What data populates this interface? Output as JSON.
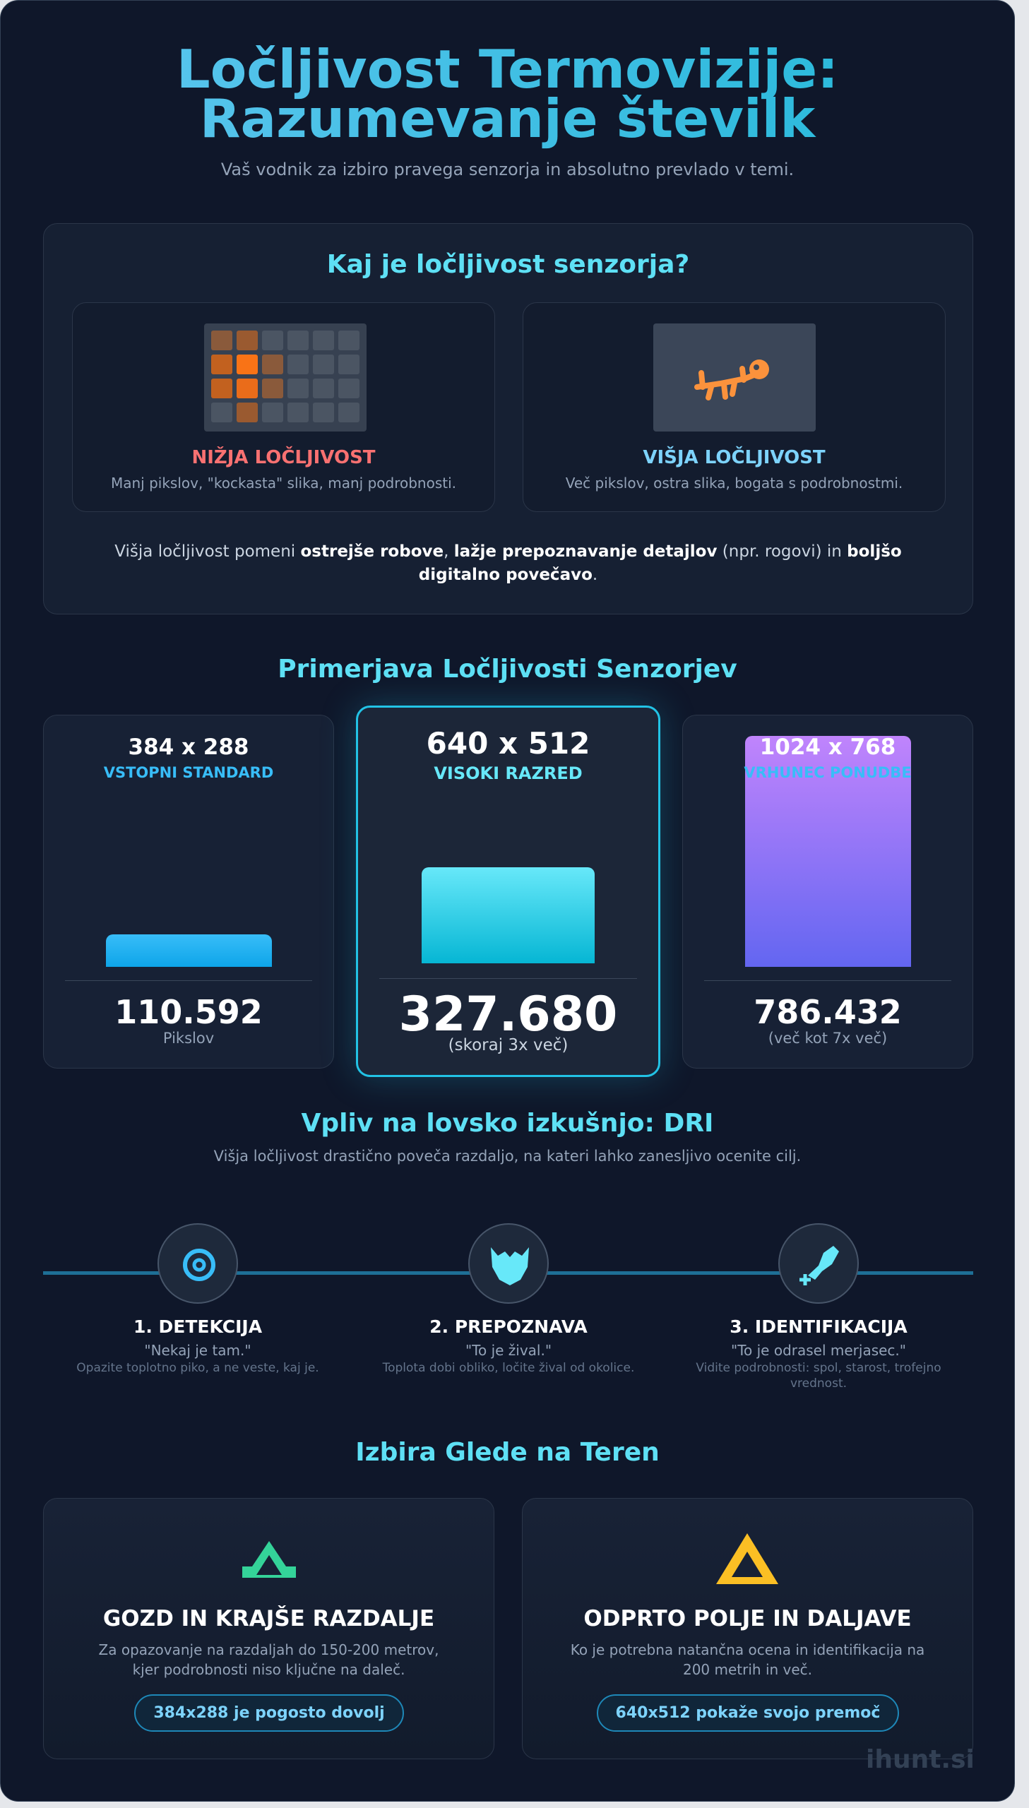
{
  "header": {
    "title_line1": "Ločljivost Termovizije:",
    "title_line2": "Razumevanje številk",
    "subtitle": "Vaš vodnik za izbiro pravega senzorja in absolutno prevlado v temi."
  },
  "resolution_intro": {
    "title": "Kaj je ločljivost senzorja?",
    "low": {
      "label": "NIŽJA LOČLJIVOST",
      "text": "Manj pikslov, \"kockasta\" slika, manj podrobnosti."
    },
    "high": {
      "label": "VIŠJA LOČLJIVOST",
      "text": "Več pikslov, ostra slika, bogata s podrobnostmi."
    },
    "paragraph": [
      "Višja ločljivost pomeni ",
      "ostrejše robove",
      ", ",
      "lažje prepoznavanje detajlov",
      " (npr. rogovi) in ",
      "boljšo digitalno povečavo",
      "."
    ]
  },
  "comparison": {
    "title": "Primerjava Ločljivosti Senzorjev",
    "cards": [
      {
        "resolution": "384 x 288",
        "tier": "VSTOPNI STANDARD",
        "pixels": 110592,
        "pixels_label": "110.592",
        "note": "Pikslov"
      },
      {
        "resolution": "640 x 512",
        "tier": "VISOKI RAZRED",
        "pixels": 327680,
        "pixels_label": "327.680",
        "note": "(skoraj 3x več)"
      },
      {
        "resolution": "1024 x 768",
        "tier": "VRHUNEC PONUDBE",
        "pixels": 786432,
        "pixels_label": "786.432",
        "note": "(več kot 7x več)"
      }
    ]
  },
  "dri": {
    "title": "Vpliv na lovsko izkušnjo: DRI",
    "subtitle": "Višja ločljivost drastično poveča razdaljo, na kateri lahko zanesljivo ocenite cilj.",
    "steps": [
      {
        "title": "1. DETEKCIJA",
        "quote": "\"Nekaj je tam.\"",
        "text": "Opazite toplotno piko, a ne veste, kaj je."
      },
      {
        "title": "2. PREPOZNAVA",
        "quote": "\"To je žival.\"",
        "text": "Toplota dobi obliko, ločite žival od okolice."
      },
      {
        "title": "3. IDENTIFIKACIJA",
        "quote": "\"To je odrasel merjasec.\"",
        "text": "Vidite podrobnosti: spol, starost, trofejno vrednost."
      }
    ]
  },
  "terrain": {
    "title": "Izbira Glede na Teren",
    "cards": [
      {
        "title": "GOZD IN KRAJŠE RAZDALJE",
        "text": "Za opazovanje na razdaljah do 150-200 metrov, kjer podrobnosti niso ključne na daleč.",
        "badge": "384x288 je pogosto dovolj"
      },
      {
        "title": "ODPRTO POLJE IN DALJAVE",
        "text": "Ko je potrebna natančna ocena in identifikacija na 200 metrih in več.",
        "badge": "640x512 pokaže svojo premoč"
      }
    ]
  },
  "watermark": "ihunt.si"
}
